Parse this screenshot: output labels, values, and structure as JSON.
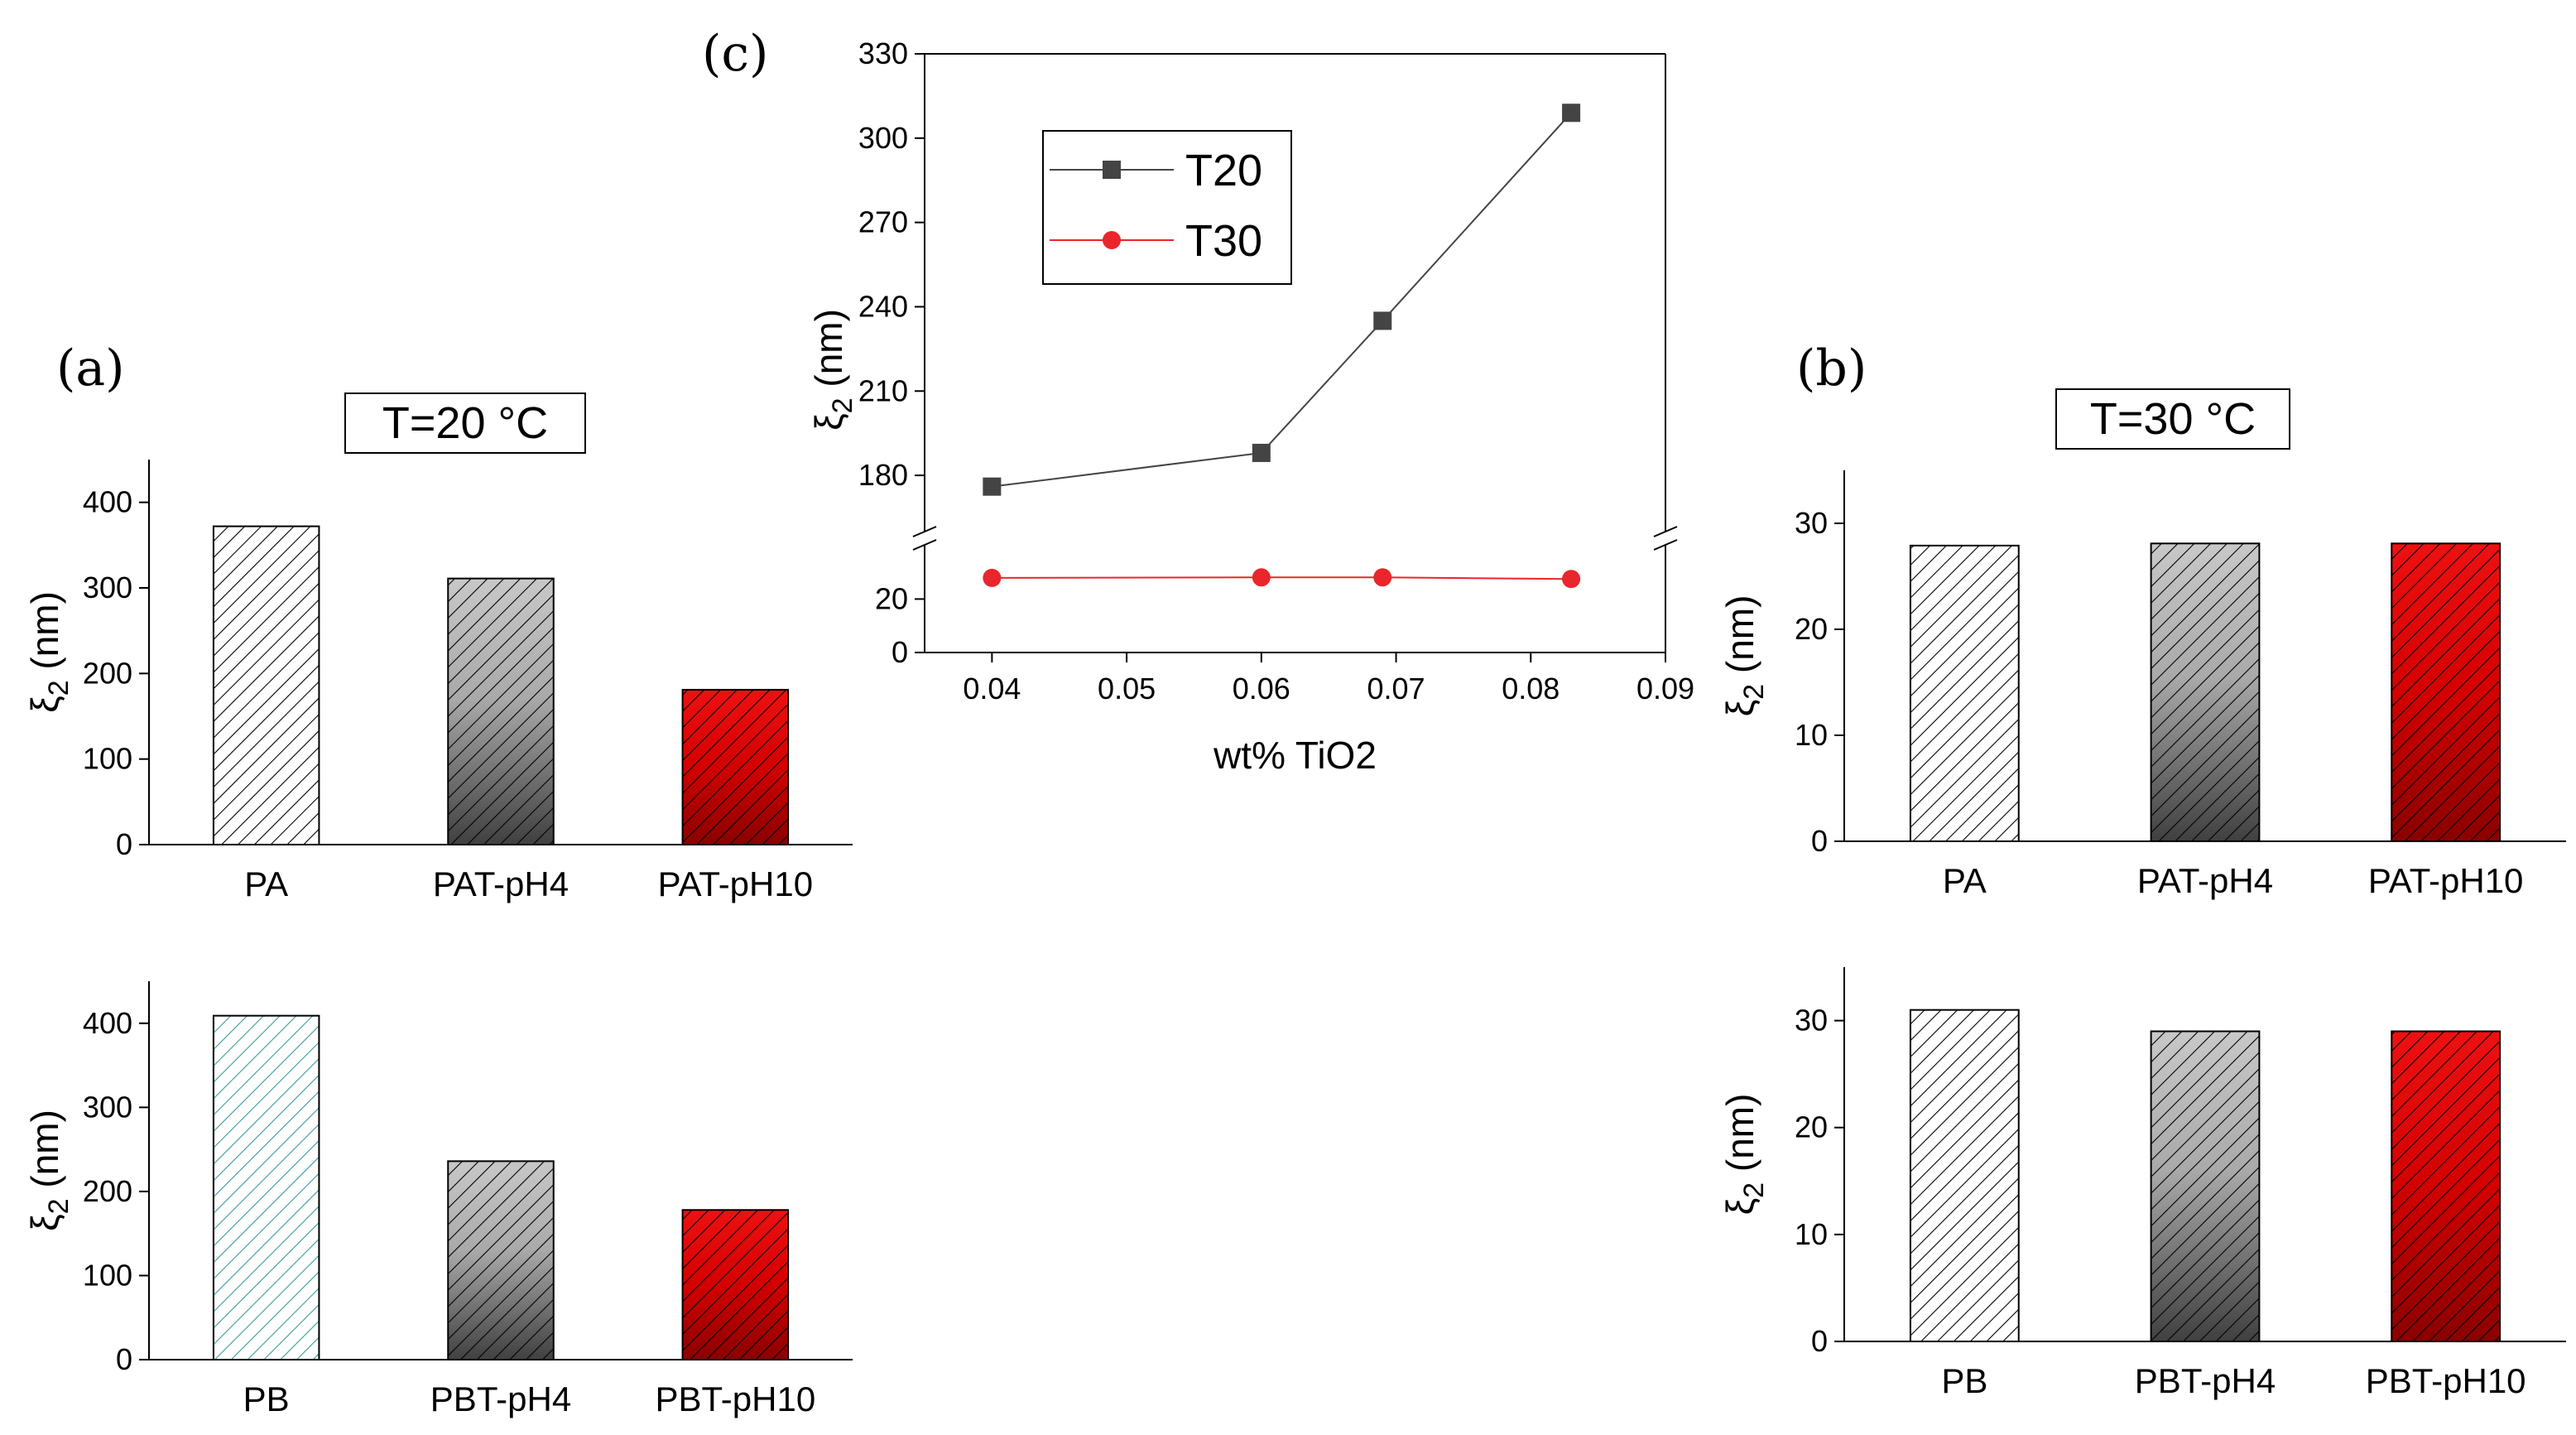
{
  "figure_labels": {
    "a": "(a)",
    "b": "(b)",
    "c": "(c)"
  },
  "chart_data": [
    {
      "id": "a_top",
      "type": "bar",
      "title": "T=20 °C",
      "categories": [
        "PA",
        "PAT-pH4",
        "PAT-pH10"
      ],
      "values": [
        372,
        311,
        181
      ],
      "ylabel": "ξ2 (nm)",
      "ylim": [
        0,
        450
      ],
      "yticks": [
        0,
        100,
        200,
        300,
        400
      ],
      "fills": [
        "white",
        "gray-gradient",
        "red-gradient"
      ]
    },
    {
      "id": "a_bottom",
      "type": "bar",
      "title": "",
      "categories": [
        "PB",
        "PBT-pH4",
        "PBT-pH10"
      ],
      "values": [
        409,
        236,
        178
      ],
      "ylabel": "ξ2 (nm)",
      "ylim": [
        0,
        450
      ],
      "yticks": [
        0,
        100,
        200,
        300,
        400
      ],
      "fills": [
        "teal-hatch",
        "gray-gradient",
        "red-gradient"
      ]
    },
    {
      "id": "b_top",
      "type": "bar",
      "title": "T=30 °C",
      "categories": [
        "PA",
        "PAT-pH4",
        "PAT-pH10"
      ],
      "values": [
        27.9,
        28.1,
        28.1
      ],
      "ylabel": "ξ2 (nm)",
      "ylim": [
        0,
        35
      ],
      "yticks": [
        0,
        10,
        20,
        30
      ],
      "fills": [
        "white",
        "gray-gradient",
        "red-gradient"
      ]
    },
    {
      "id": "b_bottom",
      "type": "bar",
      "title": "",
      "categories": [
        "PB",
        "PBT-pH4",
        "PBT-pH10"
      ],
      "values": [
        31,
        29,
        29
      ],
      "ylabel": "ξ2 (nm)",
      "ylim": [
        0,
        35
      ],
      "yticks": [
        0,
        10,
        20,
        30
      ],
      "fills": [
        "white",
        "gray-gradient",
        "red-gradient"
      ]
    },
    {
      "id": "c",
      "type": "line",
      "xlabel": "wt% TiO2",
      "ylabel": "ξ2 (nm)",
      "xlim": [
        0.035,
        0.09
      ],
      "xticks": [
        0.04,
        0.05,
        0.06,
        0.07,
        0.08,
        0.09
      ],
      "xtick_labels": [
        "0.04",
        "0.05",
        "0.06",
        "0.07",
        "0.08",
        "0.09"
      ],
      "y_break": true,
      "ylim_lower": [
        0,
        35
      ],
      "ylim_upper": [
        165,
        330
      ],
      "yticks_lower": [
        0,
        20
      ],
      "yticks_upper": [
        180,
        210,
        240,
        270,
        300,
        330
      ],
      "series": [
        {
          "name": "T20",
          "color": "#444444",
          "marker": "square",
          "x": [
            0.04,
            0.06,
            0.069,
            0.083
          ],
          "y": [
            176,
            188,
            235,
            309
          ]
        },
        {
          "name": "T30",
          "color": "#e8262b",
          "marker": "circle",
          "x": [
            0.04,
            0.06,
            0.069,
            0.083
          ],
          "y": [
            27.9,
            28.1,
            28.1,
            27.5
          ]
        }
      ],
      "legend": [
        "T20",
        "T30"
      ]
    }
  ]
}
